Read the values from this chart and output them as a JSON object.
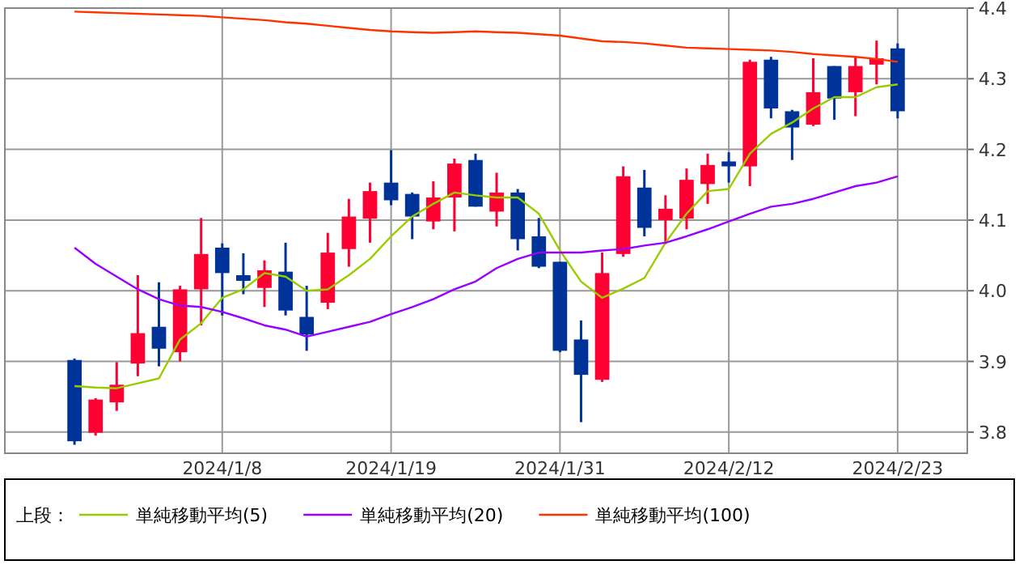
{
  "chart_data": {
    "type": "candlestick",
    "categories": [
      null,
      null,
      null,
      null,
      null,
      null,
      null,
      "2024/1/8",
      null,
      null,
      null,
      null,
      null,
      null,
      null,
      "2024/1/19",
      null,
      null,
      null,
      null,
      null,
      null,
      null,
      "2024/1/31",
      null,
      null,
      null,
      null,
      null,
      null,
      null,
      "2024/2/12",
      null,
      null,
      null,
      null,
      null,
      null,
      null,
      "2024/2/23"
    ],
    "ohlc": [
      [
        3.902,
        3.904,
        3.782,
        3.787
      ],
      [
        3.799,
        3.848,
        3.795,
        3.846
      ],
      [
        3.842,
        3.899,
        3.83,
        3.867
      ],
      [
        3.897,
        4.022,
        3.879,
        3.94
      ],
      [
        3.949,
        4.012,
        3.893,
        3.918
      ],
      [
        3.913,
        4.007,
        3.9,
        4.002
      ],
      [
        4.002,
        4.103,
        3.951,
        4.052
      ],
      [
        4.061,
        4.067,
        3.965,
        4.025
      ],
      [
        4.022,
        4.053,
        3.995,
        4.014
      ],
      [
        4.004,
        4.043,
        3.977,
        4.029
      ],
      [
        4.027,
        4.068,
        3.965,
        3.972
      ],
      [
        3.963,
        4.007,
        3.915,
        3.938
      ],
      [
        3.983,
        4.082,
        3.974,
        4.054
      ],
      [
        4.059,
        4.13,
        4.034,
        4.105
      ],
      [
        4.102,
        4.153,
        4.068,
        4.141
      ],
      [
        4.153,
        4.199,
        4.121,
        4.128
      ],
      [
        4.137,
        4.139,
        4.073,
        4.105
      ],
      [
        4.098,
        4.155,
        4.087,
        4.132
      ],
      [
        4.132,
        4.187,
        4.084,
        4.18
      ],
      [
        4.185,
        4.194,
        4.119,
        4.119
      ],
      [
        4.112,
        4.167,
        4.091,
        4.139
      ],
      [
        4.139,
        4.144,
        4.057,
        4.073
      ],
      [
        4.077,
        4.103,
        4.032,
        4.034
      ],
      [
        4.041,
        4.041,
        3.913,
        3.915
      ],
      [
        3.931,
        3.958,
        3.814,
        3.881
      ],
      [
        3.874,
        4.054,
        3.871,
        4.025
      ],
      [
        4.052,
        4.176,
        4.048,
        4.162
      ],
      [
        4.146,
        4.171,
        4.077,
        4.089
      ],
      [
        4.1,
        4.135,
        4.066,
        4.116
      ],
      [
        4.102,
        4.173,
        4.087,
        4.157
      ],
      [
        4.151,
        4.194,
        4.123,
        4.178
      ],
      [
        4.183,
        4.196,
        4.153,
        4.176
      ],
      [
        4.176,
        4.327,
        4.148,
        4.324
      ],
      [
        4.327,
        4.331,
        4.244,
        4.258
      ],
      [
        4.254,
        4.256,
        4.185,
        4.231
      ],
      [
        4.235,
        4.329,
        4.233,
        4.281
      ],
      [
        4.318,
        4.318,
        4.242,
        4.272
      ],
      [
        4.281,
        4.331,
        4.247,
        4.318
      ],
      [
        4.32,
        4.354,
        4.292,
        4.329
      ],
      [
        4.343,
        4.35,
        4.244,
        4.254
      ]
    ],
    "colors": [
      "#003399",
      "#ff0033",
      "#ff0033",
      "#ff0033",
      "#003399",
      "#ff0033",
      "#ff0033",
      "#003399",
      "#003399",
      "#ff0033",
      "#003399",
      "#003399",
      "#ff0033",
      "#ff0033",
      "#ff0033",
      "#003399",
      "#003399",
      "#ff0033",
      "#ff0033",
      "#003399",
      "#ff0033",
      "#003399",
      "#003399",
      "#003399",
      "#003399",
      "#ff0033",
      "#ff0033",
      "#003399",
      "#ff0033",
      "#ff0033",
      "#ff0033",
      "#003399",
      "#ff0033",
      "#003399",
      "#003399",
      "#ff0033",
      "#003399",
      "#ff0033",
      "#ff0033",
      "#003399"
    ],
    "series": [
      {
        "type": "line",
        "name": "単純移動平均(5)",
        "color": "#99cc00",
        "values": [
          3.865,
          3.863,
          3.862,
          3.869,
          3.876,
          3.931,
          3.954,
          3.99,
          4.002,
          4.025,
          4.02,
          4.0,
          4.002,
          4.022,
          4.045,
          4.077,
          4.105,
          4.123,
          4.139,
          4.135,
          4.132,
          4.132,
          4.109,
          4.057,
          4.013,
          3.99,
          4.003,
          4.018,
          4.068,
          4.109,
          4.141,
          4.144,
          4.194,
          4.222,
          4.238,
          4.258,
          4.274,
          4.274,
          4.288,
          4.292
        ]
      },
      {
        "type": "line",
        "name": "単純移動平均(20)",
        "color": "#9900ff",
        "values": [
          4.061,
          4.038,
          4.02,
          4.002,
          3.988,
          3.979,
          3.977,
          3.97,
          3.961,
          3.951,
          3.945,
          3.935,
          3.942,
          3.949,
          3.956,
          3.967,
          3.977,
          3.988,
          4.002,
          4.013,
          4.032,
          4.045,
          4.054,
          4.054,
          4.054,
          4.057,
          4.059,
          4.064,
          4.068,
          4.077,
          4.087,
          4.098,
          4.109,
          4.119,
          4.123,
          4.13,
          4.139,
          4.148,
          4.153,
          4.162
        ]
      },
      {
        "type": "line",
        "name": "単純移動平均(100)",
        "color": "#ff3300",
        "values": [
          4.395,
          4.394,
          4.393,
          4.392,
          4.391,
          4.39,
          4.389,
          4.387,
          4.385,
          4.383,
          4.38,
          4.378,
          4.375,
          4.372,
          4.369,
          4.367,
          4.366,
          4.365,
          4.366,
          4.367,
          4.366,
          4.365,
          4.363,
          4.361,
          4.357,
          4.353,
          4.352,
          4.35,
          4.347,
          4.344,
          4.343,
          4.342,
          4.341,
          4.34,
          4.338,
          4.335,
          4.333,
          4.331,
          4.328,
          4.324
        ]
      }
    ],
    "ylim": [
      3.77,
      4.4
    ],
    "yticks": [
      3.8,
      3.9,
      {
        "value": 4.0,
        "label": "4.0"
      },
      4.1,
      4.2,
      4.3,
      4.4
    ],
    "grid": true,
    "legend": "bottom",
    "legend_title": "上段："
  }
}
